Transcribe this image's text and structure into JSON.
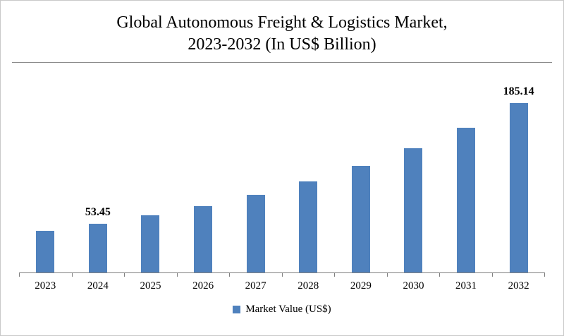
{
  "chart_data": {
    "type": "bar",
    "title": "Global Autonomous Freight & Logistics Market, 2023-2032 (In US$ Billion)",
    "title_line1": "Global Autonomous Freight & Logistics Market,",
    "title_line2": "2023-2032 (In US$ Billion)",
    "categories": [
      "2023",
      "2024",
      "2025",
      "2026",
      "2027",
      "2028",
      "2029",
      "2030",
      "2031",
      "2032"
    ],
    "values": [
      45.76,
      53.45,
      62.43,
      72.92,
      85.18,
      99.49,
      116.21,
      135.74,
      158.55,
      185.14
    ],
    "labels": [
      "",
      "53.45",
      "",
      "",
      "",
      "",
      "",
      "",
      "",
      "185.14"
    ],
    "series_name": "Market Value (US$)",
    "legend": "Market Value (US$)",
    "bar_color": "#4F81BD",
    "ylim": [
      0,
      230
    ],
    "grid": false,
    "legend_position": "bottom",
    "xlabel": "",
    "ylabel": ""
  }
}
